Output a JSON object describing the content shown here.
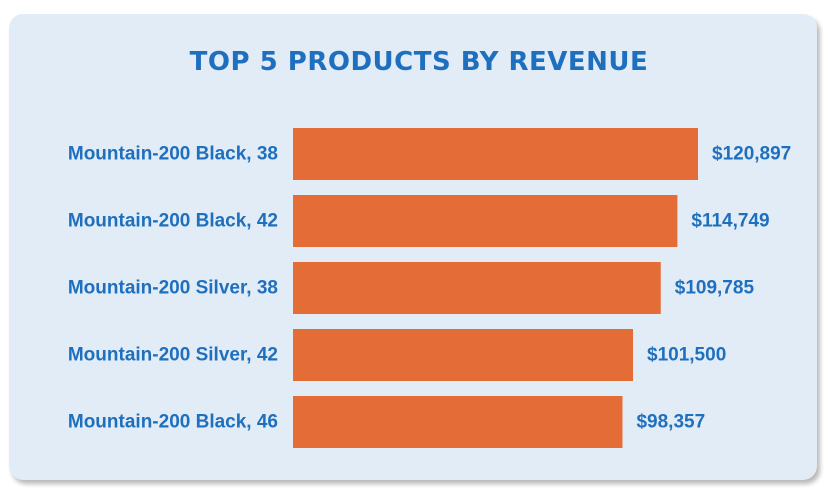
{
  "colors": {
    "background": "#e2ecf6",
    "bar": "#e46d37",
    "text": "#1f6fbf"
  },
  "chart_data": {
    "type": "bar",
    "orientation": "horizontal",
    "title": "TOP 5 PRODUCTS BY REVENUE",
    "categories": [
      "Mountain-200 Black, 38",
      "Mountain-200 Black, 42",
      "Mountain-200 Silver, 38",
      "Mountain-200 Silver, 42",
      "Mountain-200 Black, 46"
    ],
    "values": [
      120897,
      114749,
      109785,
      101500,
      98357
    ],
    "value_labels": [
      "$120,897",
      "$114,749",
      "$109,785",
      "$101,500",
      "$98,357"
    ],
    "xlim": [
      0,
      120897
    ],
    "grid": false,
    "legend": "none"
  }
}
